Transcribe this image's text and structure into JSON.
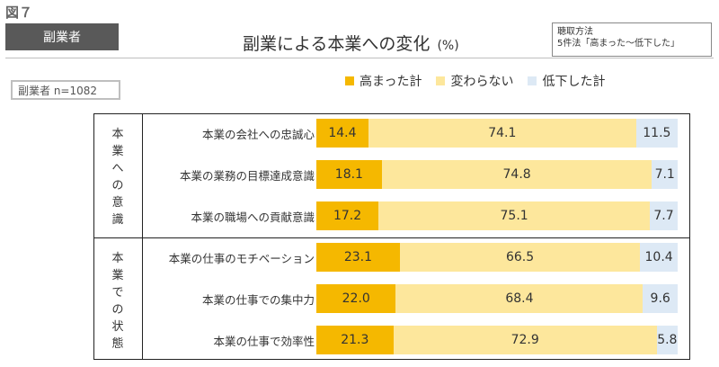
{
  "figure_label": "図７",
  "tag": "副業者",
  "title": "副業による本業への変化",
  "unit": "(%)",
  "method_box": {
    "line1": "聴取方法",
    "line2": "5件法「高まった～低下した」"
  },
  "sample": "副業者 n=1082",
  "colors": {
    "high": "#f5b800",
    "same": "#fde79c",
    "low": "#dde9f5"
  },
  "chart_data": {
    "type": "bar",
    "orientation": "horizontal",
    "stacked": true,
    "legend_position": "top",
    "series_names": [
      "高まった計",
      "変わらない",
      "低下した計"
    ],
    "groups": [
      {
        "label": "本業への意識",
        "chars": [
          "本",
          "業",
          "へ",
          "の",
          "意",
          "識"
        ]
      },
      {
        "label": "本業での状態",
        "chars": [
          "本",
          "業",
          "で",
          "の",
          "状",
          "態"
        ]
      }
    ],
    "categories": [
      "本業の会社への忠誠心",
      "本業の業務の目標達成意識",
      "本業の職場への貢献意識",
      "本業の仕事のモチベーション",
      "本業の仕事での集中力",
      "本業の仕事で効率性"
    ],
    "series": [
      {
        "name": "高まった計",
        "values": [
          14.4,
          18.1,
          17.2,
          23.1,
          22.0,
          21.3
        ]
      },
      {
        "name": "変わらない",
        "values": [
          74.1,
          74.8,
          75.1,
          66.5,
          68.4,
          72.9
        ]
      },
      {
        "name": "低下した計",
        "values": [
          11.5,
          7.1,
          7.7,
          10.4,
          9.6,
          5.8
        ]
      }
    ],
    "xlim": [
      0,
      100
    ]
  }
}
